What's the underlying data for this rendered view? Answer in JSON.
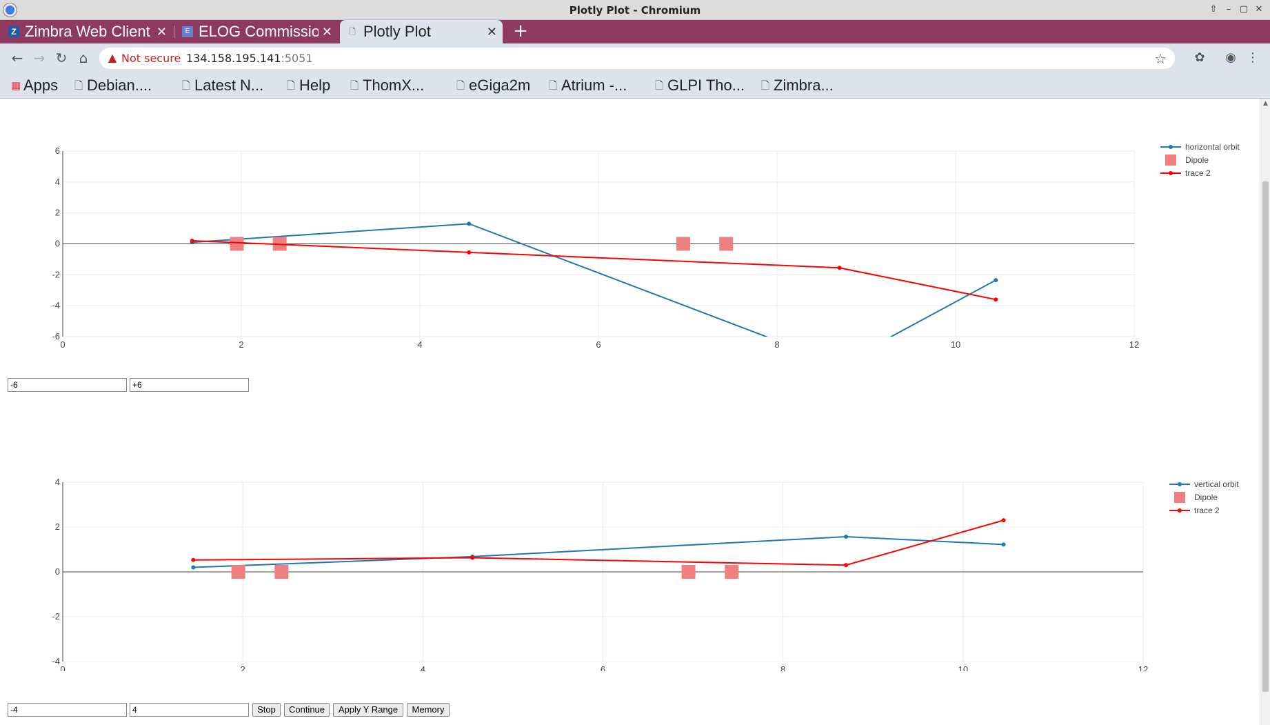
{
  "window": {
    "title": "Plotly Plot - Chromium"
  },
  "tabs": [
    {
      "label": "Zimbra Web Client",
      "favicon": "Z"
    },
    {
      "label": "ELOG Commissioning",
      "favicon": "E"
    },
    {
      "label": "Plotly Plot",
      "favicon": "page"
    }
  ],
  "address": {
    "security_label": "Not secure",
    "host": "134.158.195.141",
    "port": ":5051"
  },
  "bookmarks": [
    "Apps",
    "Debian....",
    "Latest N...",
    "Help",
    "ThomX...",
    "eGiga2m",
    "Atrium -...",
    "GLPI Tho...",
    "Zimbra..."
  ],
  "controls": {
    "top_min": "-6",
    "top_max": "+6",
    "bottom_min": "-4",
    "bottom_max": "4",
    "stop_label": "Stop",
    "continue_label": "Continue",
    "apply_label": "Apply Y Range",
    "memory_label": "Memory"
  },
  "colors": {
    "orbit": "#1f77b4",
    "dipole": "#f08080",
    "trace2": "#ff0000"
  },
  "chart_data": [
    {
      "type": "line",
      "xlim": [
        0,
        12
      ],
      "ylim": [
        -6,
        6
      ],
      "xticks": [
        0,
        2,
        4,
        6,
        8,
        10,
        12
      ],
      "yticks": [
        -6,
        -4,
        -2,
        0,
        2,
        4,
        6
      ],
      "legend_position": "top-right",
      "series": [
        {
          "name": "horizontal orbit",
          "kind": "line+markers",
          "x": [
            1.45,
            4.55,
            8.7,
            10.45
          ],
          "y": [
            0.1,
            1.3,
            -7.8,
            -2.35
          ]
        },
        {
          "name": "Dipole",
          "kind": "markers",
          "x": [
            1.95,
            2.43,
            6.95,
            7.43
          ],
          "y": [
            0,
            0,
            0,
            0
          ]
        },
        {
          "name": "trace 2",
          "kind": "line+markers",
          "x": [
            1.45,
            4.55,
            8.7,
            10.45
          ],
          "y": [
            0.2,
            -0.55,
            -1.55,
            -3.6
          ]
        }
      ]
    },
    {
      "type": "line",
      "xlim": [
        0,
        12
      ],
      "ylim": [
        -4,
        4
      ],
      "xticks": [
        0,
        2,
        4,
        6,
        8,
        10,
        12
      ],
      "yticks": [
        -4,
        -2,
        0,
        2,
        4
      ],
      "legend_position": "top-right",
      "series": [
        {
          "name": "vertical orbit",
          "kind": "line+markers",
          "x": [
            1.45,
            4.55,
            8.7,
            10.45
          ],
          "y": [
            0.2,
            0.68,
            1.57,
            1.22
          ]
        },
        {
          "name": "Dipole",
          "kind": "markers",
          "x": [
            1.95,
            2.43,
            6.95,
            7.43
          ],
          "y": [
            0,
            0,
            0,
            0
          ]
        },
        {
          "name": "trace 2",
          "kind": "line+markers",
          "x": [
            1.45,
            4.55,
            8.7,
            10.45
          ],
          "y": [
            0.53,
            0.63,
            0.3,
            2.3
          ]
        }
      ]
    }
  ]
}
